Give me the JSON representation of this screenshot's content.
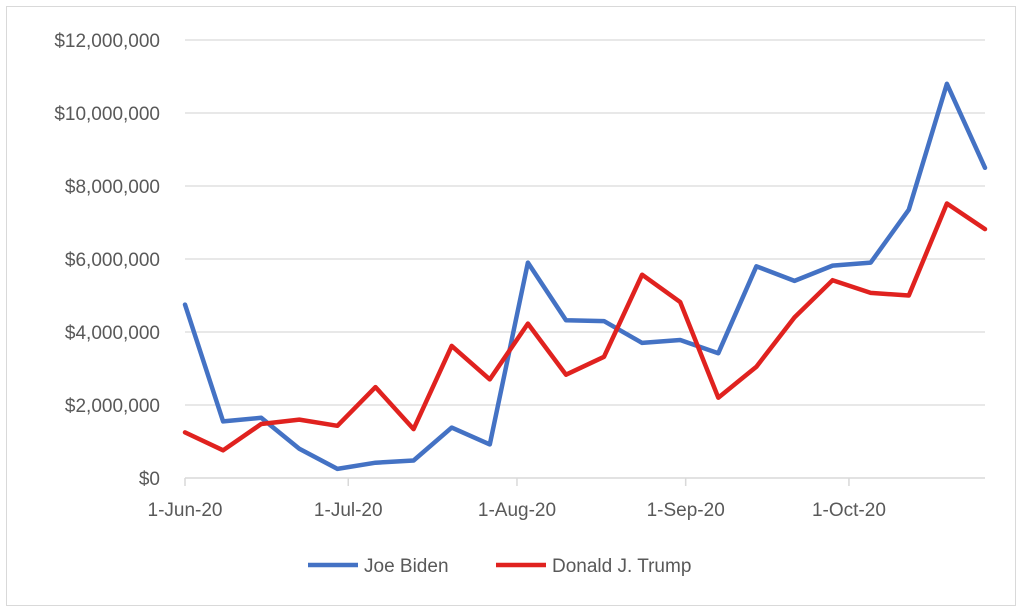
{
  "chart_data": {
    "type": "line",
    "title": "",
    "xlabel": "",
    "ylabel": "",
    "ylim": [
      0,
      12000000
    ],
    "y_ticks": [
      0,
      2000000,
      4000000,
      6000000,
      8000000,
      10000000,
      12000000
    ],
    "y_tick_labels": [
      "$0",
      "$2,000,000",
      "$4,000,000",
      "$6,000,000",
      "$8,000,000",
      "$10,000,000",
      "$12,000,000"
    ],
    "x": [
      "2020-06-01",
      "2020-06-08",
      "2020-06-15",
      "2020-06-22",
      "2020-06-29",
      "2020-07-06",
      "2020-07-13",
      "2020-07-20",
      "2020-07-27",
      "2020-08-03",
      "2020-08-10",
      "2020-08-17",
      "2020-08-24",
      "2020-08-31",
      "2020-09-07",
      "2020-09-14",
      "2020-09-21",
      "2020-09-28",
      "2020-10-05",
      "2020-10-12",
      "2020-10-19",
      "2020-10-26"
    ],
    "x_ticks": [
      "2020-06-01",
      "2020-07-01",
      "2020-08-01",
      "2020-09-01",
      "2020-10-01"
    ],
    "x_tick_labels": [
      "1-Jun-20",
      "1-Jul-20",
      "1-Aug-20",
      "1-Sep-20",
      "1-Oct-20"
    ],
    "series": [
      {
        "name": "Joe Biden",
        "color": "#4472c4",
        "values": [
          4750000,
          1550000,
          1650000,
          800000,
          250000,
          420000,
          480000,
          1380000,
          920000,
          5900000,
          4320000,
          4300000,
          3700000,
          3780000,
          3420000,
          5800000,
          5400000,
          5820000,
          5900000,
          7350000,
          10800000,
          8500000
        ]
      },
      {
        "name": "Donald J. Trump",
        "color": "#e0221f",
        "values": [
          1250000,
          760000,
          1480000,
          1600000,
          1430000,
          2490000,
          1340000,
          3620000,
          2700000,
          4230000,
          2830000,
          3320000,
          5570000,
          4820000,
          2200000,
          3050000,
          4400000,
          5420000,
          5070000,
          5000000,
          7520000,
          6820000
        ]
      }
    ],
    "grid": true,
    "legend": "bottom"
  }
}
